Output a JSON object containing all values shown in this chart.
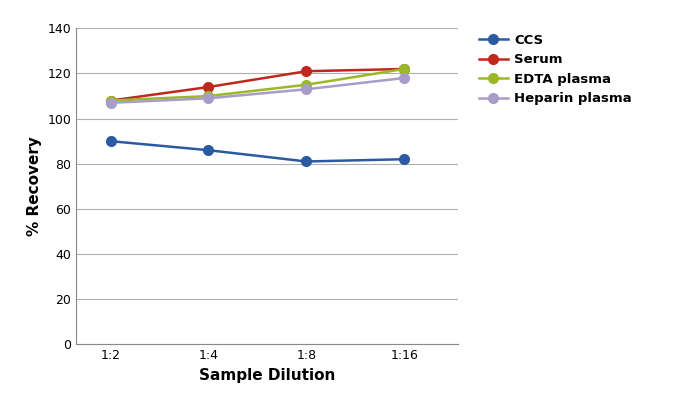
{
  "x_labels": [
    "1:2",
    "1:4",
    "1:8",
    "1:16"
  ],
  "x_values": [
    0,
    1,
    2,
    3
  ],
  "series": [
    {
      "label": "CCS",
      "values": [
        90,
        86,
        81,
        82
      ],
      "color": "#2b5aa0",
      "marker": "o",
      "linewidth": 1.8
    },
    {
      "label": "Serum",
      "values": [
        108,
        114,
        121,
        122
      ],
      "color": "#c0271d",
      "marker": "o",
      "linewidth": 1.8
    },
    {
      "label": "EDTA plasma",
      "values": [
        108,
        110,
        115,
        122
      ],
      "color": "#9ab827",
      "marker": "o",
      "linewidth": 1.8
    },
    {
      "label": "Heparin plasma",
      "values": [
        107,
        109,
        113,
        118
      ],
      "color": "#a89cc8",
      "marker": "o",
      "linewidth": 1.8
    }
  ],
  "xlabel": "Sample Dilution",
  "ylabel": "% Recovery",
  "ylim": [
    0,
    140
  ],
  "yticks": [
    0,
    20,
    40,
    60,
    80,
    100,
    120,
    140
  ],
  "title": "",
  "grid_color": "#b0b0b0",
  "background_color": "#ffffff",
  "legend_fontsize": 9.5,
  "axis_label_fontsize": 11,
  "tick_fontsize": 9
}
